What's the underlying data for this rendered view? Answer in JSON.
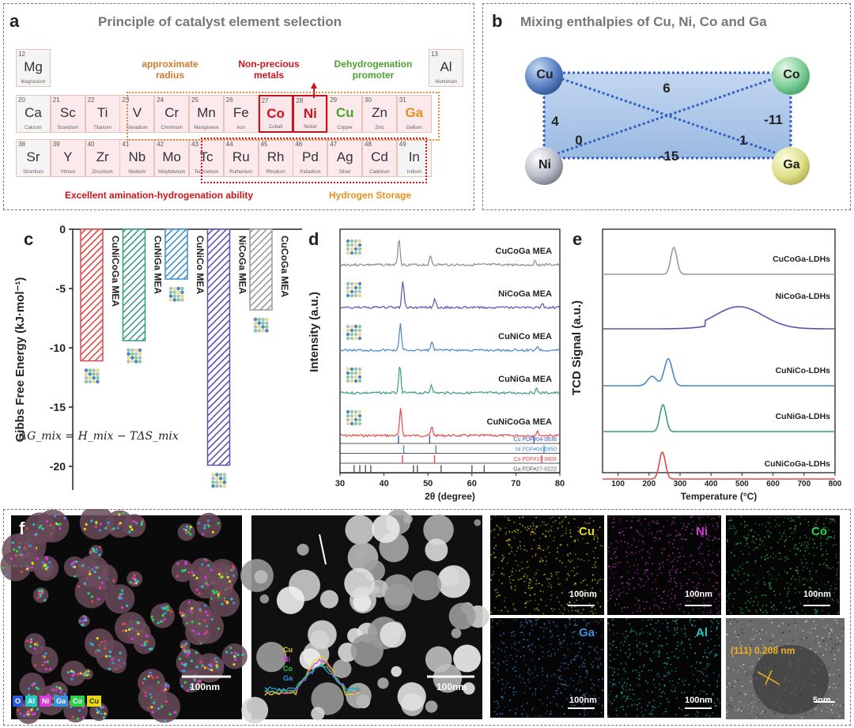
{
  "panel_a": {
    "letter": "a",
    "title": "Principle of catalyst element selection",
    "labels": {
      "radius": "approximate\nradius",
      "nonprecious": "Non-precious\nmetals",
      "dehydro": "Dehydrogenation\npromoter",
      "amination": "Excellent amination-hydrogenation ability",
      "storage": "Hydrogen Storage"
    },
    "elements": [
      {
        "num": "12",
        "sym": "Mg",
        "name": "Magnesium"
      },
      {
        "num": "13",
        "sym": "Al",
        "name": "Aluminium"
      },
      {
        "num": "20",
        "sym": "Ca",
        "name": "Calcium"
      },
      {
        "num": "21",
        "sym": "Sc",
        "name": "Scandium"
      },
      {
        "num": "22",
        "sym": "Ti",
        "name": "Titanium"
      },
      {
        "num": "23",
        "sym": "V",
        "name": "Vanadium"
      },
      {
        "num": "24",
        "sym": "Cr",
        "name": "Chromium"
      },
      {
        "num": "25",
        "sym": "Mn",
        "name": "Manganese"
      },
      {
        "num": "26",
        "sym": "Fe",
        "name": "Iron"
      },
      {
        "num": "27",
        "sym": "Co",
        "name": "Cobalt"
      },
      {
        "num": "28",
        "sym": "Ni",
        "name": "Nickel"
      },
      {
        "num": "29",
        "sym": "Cu",
        "name": "Copper"
      },
      {
        "num": "30",
        "sym": "Zn",
        "name": "Zinc"
      },
      {
        "num": "31",
        "sym": "Ga",
        "name": "Gallium"
      },
      {
        "num": "38",
        "sym": "Sr",
        "name": "Strontium"
      },
      {
        "num": "39",
        "sym": "Y",
        "name": "Yttrium"
      },
      {
        "num": "40",
        "sym": "Zr",
        "name": "Zirconium"
      },
      {
        "num": "41",
        "sym": "Nb",
        "name": "Niobium"
      },
      {
        "num": "42",
        "sym": "Mo",
        "name": "Molybdenum"
      },
      {
        "num": "43",
        "sym": "Tc",
        "name": "Technetium"
      },
      {
        "num": "44",
        "sym": "Ru",
        "name": "Ruthenium"
      },
      {
        "num": "45",
        "sym": "Rh",
        "name": "Rhodium"
      },
      {
        "num": "46",
        "sym": "Pd",
        "name": "Palladium"
      },
      {
        "num": "47",
        "sym": "Ag",
        "name": "Silver"
      },
      {
        "num": "48",
        "sym": "Cd",
        "name": "Cadmium"
      },
      {
        "num": "49",
        "sym": "In",
        "name": "Indium"
      }
    ]
  },
  "panel_b": {
    "letter": "b",
    "title": "Mixing enthalpies of Cu, Ni, Co and Ga",
    "nodes": [
      "Cu",
      "Co",
      "Ni",
      "Ga"
    ],
    "values": {
      "cu_co": "6",
      "cu_ni": "4",
      "cu_ga": "1",
      "ni_co": "0",
      "co_ga": "-11",
      "ni_ga": "-15"
    }
  },
  "chart_data": [
    {
      "panel": "c",
      "type": "bar",
      "ylabel": "Gibbs Free Energy (kJ·mol⁻¹)",
      "ylim": [
        -22,
        0
      ],
      "yticks": [
        0,
        -5,
        -10,
        -15,
        -20
      ],
      "categories": [
        "CuNiCoGa MEA",
        "CuNiGa MEA",
        "CuNiCo MEA",
        "NiCoGa MEA",
        "CuCoGa MEA"
      ],
      "values": [
        -11.1,
        -9.4,
        -4.2,
        -19.9,
        -6.8
      ],
      "colors": [
        "#e04848",
        "#3a9a84",
        "#3d8fc8",
        "#5a52b0",
        "#9a9a9a"
      ],
      "equation": "ΔG_mix = H_mix − TΔS_mix"
    },
    {
      "panel": "d",
      "type": "line",
      "xlabel": "2θ (degree)",
      "ylabel": "Intensity (a.u.)",
      "xlim": [
        30,
        80
      ],
      "xticks": [
        30,
        40,
        50,
        60,
        70,
        80
      ],
      "series": [
        {
          "name": "CuCoGa MEA",
          "color": "#8a8a8a",
          "peaks": [
            43.4,
            50.6,
            74.4
          ]
        },
        {
          "name": "NiCoGa MEA",
          "color": "#5a52b0",
          "peaks": [
            44.3,
            51.6,
            76.0
          ]
        },
        {
          "name": "CuNiCo MEA",
          "color": "#4a86c6",
          "peaks": [
            43.7,
            50.9,
            74.9
          ]
        },
        {
          "name": "CuNiGa MEA",
          "color": "#3a9a84",
          "peaks": [
            43.6,
            50.8,
            74.7
          ]
        },
        {
          "name": "CuNiCoGa MEA",
          "color": "#e04848",
          "peaks": [
            43.8,
            50.9,
            74.9
          ]
        }
      ],
      "references": [
        {
          "name": "Cu  PDF#04-0836",
          "color": "#3b4fb8",
          "peaks": [
            43.3,
            50.4,
            74.1
          ]
        },
        {
          "name": "Ni  PDF#04-0850",
          "color": "#3d8fc8",
          "peaks": [
            44.5,
            51.8,
            76.4
          ]
        },
        {
          "name": "Co PDF#15-0806",
          "color": "#e04848",
          "peaks": [
            44.2,
            51.5,
            75.9
          ]
        },
        {
          "name": "Ga PDF#27-0222",
          "color": "#555555",
          "peaks": [
            33.2,
            34.5,
            35.8,
            37.0,
            46.7,
            47.6,
            53.0,
            60.0,
            62.8
          ]
        }
      ]
    },
    {
      "panel": "e",
      "type": "line",
      "xlabel": "Temperature (°C)",
      "ylabel": "TCD Signal (a.u.)",
      "xlim": [
        50,
        800
      ],
      "xticks": [
        100,
        200,
        300,
        400,
        500,
        600,
        700,
        800
      ],
      "series": [
        {
          "name": "CuCoGa-LDHs",
          "color": "#9a9a9a",
          "peak_c": 280
        },
        {
          "name": "NiCoGa-LDHs",
          "color": "#5a52b0",
          "peak_c": 490
        },
        {
          "name": "CuNiCo-LDHs",
          "color": "#4a86c6",
          "peak_c": 262
        },
        {
          "name": "CuNiGa-LDHs",
          "color": "#3a9a84",
          "peak_c": 245
        },
        {
          "name": "CuNiCoGa-LDHs",
          "color": "#e04848",
          "peak_c": 243
        }
      ]
    }
  ],
  "panel_f": {
    "letter": "f",
    "scalebar": "100nm",
    "scalebar_small": "5nm",
    "maps": [
      {
        "el": "Cu",
        "color": "#e3d81a"
      },
      {
        "el": "Ni",
        "color": "#d63bd6"
      },
      {
        "el": "Co",
        "color": "#2bd14a"
      },
      {
        "el": "Ga",
        "color": "#3a8fe0"
      },
      {
        "el": "Al",
        "color": "#27c6c2"
      }
    ],
    "profile_legend": [
      "Cu",
      "Ni",
      "Co",
      "Ga"
    ],
    "hrtem_label": "(111) 0.208 nm",
    "composite_legend": [
      "O",
      "Al",
      "Ni",
      "Ga",
      "Co",
      "Cu"
    ]
  }
}
